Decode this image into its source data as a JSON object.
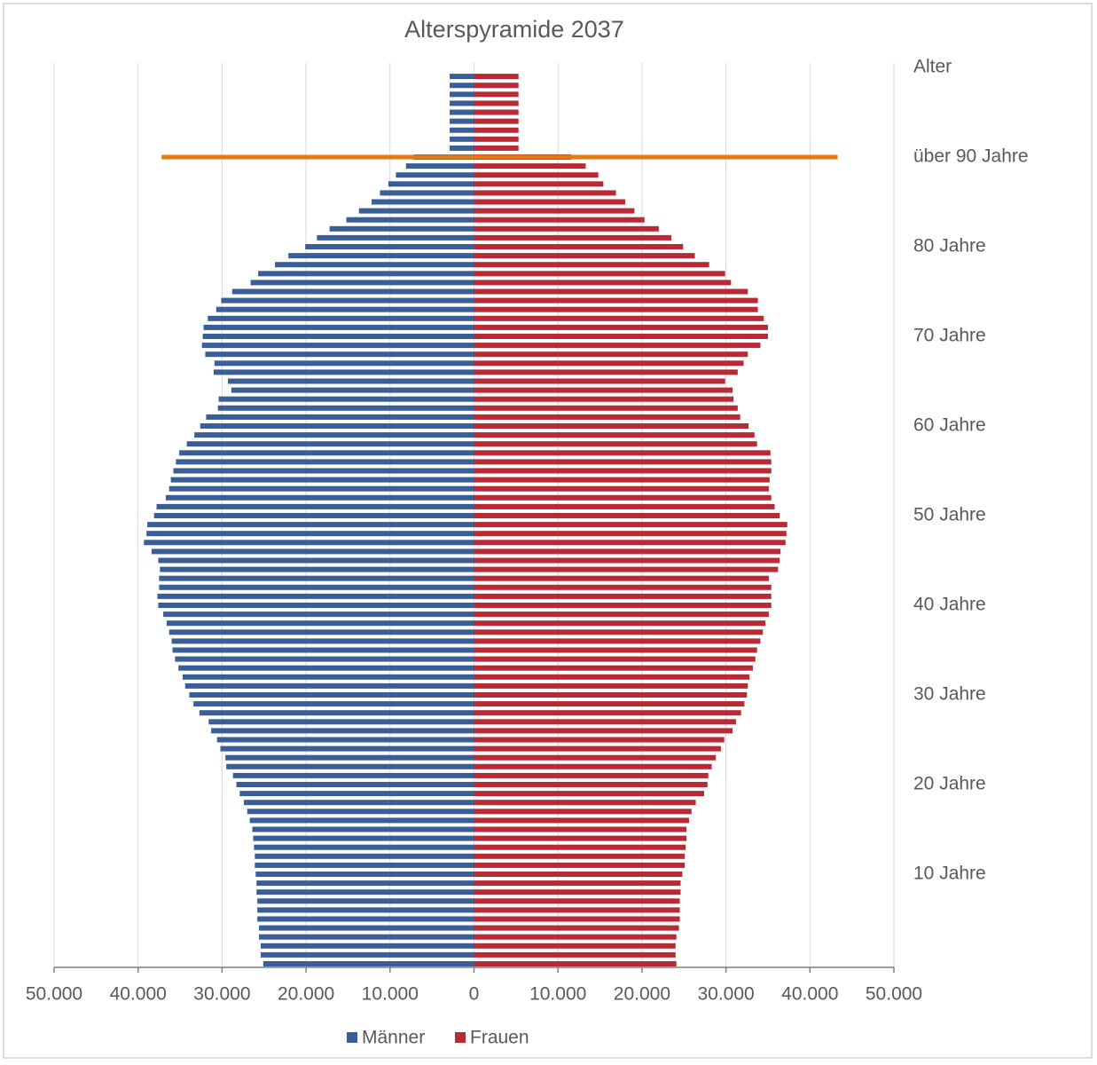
{
  "chart_data": {
    "type": "population-pyramid",
    "title": "Alterspyramide 2037",
    "y_label": "Alter",
    "categories": [
      null,
      null,
      null,
      null,
      null,
      null,
      null,
      null,
      null,
      null,
      "10 Jahre",
      null,
      null,
      null,
      null,
      null,
      null,
      null,
      null,
      null,
      "20 Jahre",
      null,
      null,
      null,
      null,
      null,
      null,
      null,
      null,
      null,
      "30 Jahre",
      null,
      null,
      null,
      null,
      null,
      null,
      null,
      null,
      null,
      "40 Jahre",
      null,
      null,
      null,
      null,
      null,
      null,
      null,
      null,
      null,
      "50 Jahre",
      null,
      null,
      null,
      null,
      null,
      null,
      null,
      null,
      null,
      "60 Jahre",
      null,
      null,
      null,
      null,
      null,
      null,
      null,
      null,
      null,
      "70 Jahre",
      null,
      null,
      null,
      null,
      null,
      null,
      null,
      null,
      null,
      "80 Jahre",
      null,
      null,
      null,
      null,
      null,
      null,
      null,
      null,
      null,
      "über 90 Jahre",
      null,
      null,
      null,
      null,
      null,
      null,
      null,
      null,
      null
    ],
    "series": [
      {
        "name": "Männer",
        "color": "#3a5f98",
        "side": "left",
        "values": [
          25100,
          25400,
          25400,
          25600,
          25600,
          25800,
          25800,
          25800,
          25900,
          25900,
          26000,
          26100,
          26100,
          26200,
          26300,
          26400,
          26700,
          27000,
          27400,
          27900,
          28300,
          28700,
          29500,
          29600,
          30200,
          30600,
          31300,
          31600,
          32700,
          33400,
          33900,
          34400,
          34700,
          35200,
          35600,
          35900,
          36000,
          36300,
          36600,
          37000,
          37600,
          37700,
          37500,
          37500,
          37400,
          37600,
          38400,
          39300,
          39000,
          38900,
          38100,
          37800,
          36700,
          36300,
          36100,
          35800,
          35500,
          35100,
          34200,
          33300,
          32600,
          31900,
          30500,
          30400,
          28900,
          29300,
          31000,
          30900,
          32000,
          32400,
          32300,
          32200,
          31700,
          30700,
          30100,
          28800,
          26600,
          25700,
          23700,
          22100,
          20100,
          18700,
          17200,
          15200,
          13700,
          12200,
          11200,
          10200,
          9300,
          8100,
          7200,
          2900,
          2900,
          2900,
          2900,
          2900,
          2900,
          2900,
          2900,
          2900
        ]
      },
      {
        "name": "Frauen",
        "color": "#b82a35",
        "side": "right",
        "values": [
          24100,
          24000,
          24000,
          24100,
          24400,
          24500,
          24500,
          24500,
          24600,
          24600,
          24800,
          25100,
          25100,
          25200,
          25300,
          25300,
          25600,
          25900,
          26400,
          27400,
          27800,
          27900,
          28300,
          28800,
          29400,
          29800,
          30800,
          31200,
          31800,
          32200,
          32500,
          32600,
          32800,
          33200,
          33500,
          33700,
          34100,
          34400,
          34700,
          35100,
          35400,
          35400,
          35400,
          35100,
          36200,
          36400,
          36500,
          37100,
          37200,
          37300,
          36400,
          35800,
          35400,
          35100,
          35200,
          35400,
          35400,
          35300,
          33700,
          33400,
          32700,
          31700,
          31400,
          30900,
          30800,
          29900,
          31400,
          32100,
          32600,
          34100,
          35000,
          35000,
          34500,
          33800,
          33800,
          32600,
          30600,
          29900,
          28000,
          26300,
          24900,
          23500,
          22000,
          20300,
          19100,
          18000,
          16900,
          15400,
          14800,
          13300,
          11600,
          5300,
          5300,
          5300,
          5300,
          5300,
          5300,
          5300,
          5300,
          5300
        ]
      }
    ],
    "xlim": [
      -50000,
      50000
    ],
    "xticks": [
      {
        "value": -50000,
        "label": "50.000"
      },
      {
        "value": -40000,
        "label": "40.000"
      },
      {
        "value": -30000,
        "label": "30.000"
      },
      {
        "value": -20000,
        "label": "20.000"
      },
      {
        "value": -10000,
        "label": "10.000"
      },
      0,
      {
        "value": 10000,
        "label": "10.000"
      },
      {
        "value": 20000,
        "label": "20.000"
      },
      {
        "value": 30000,
        "label": "30.000"
      },
      {
        "value": 40000,
        "label": "40.000"
      },
      {
        "value": 50000,
        "label": "50.000"
      }
    ],
    "grid": true,
    "reference_line": {
      "y": 90,
      "x": [
        -37200,
        43300
      ],
      "color": "#e57a0f"
    },
    "legend": "bottom"
  }
}
